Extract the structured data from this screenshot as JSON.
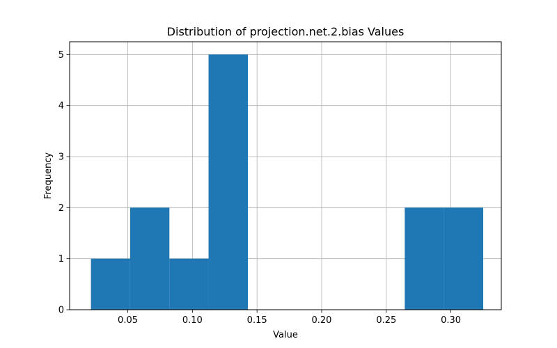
{
  "chart_data": {
    "type": "histogram",
    "title": "Distribution of projection.net.2.bias Values",
    "xlabel": "Value",
    "ylabel": "Frequency",
    "xlim": [
      0.005,
      0.339
    ],
    "ylim": [
      0,
      5.25
    ],
    "grid": true,
    "bar_color": "#1f77b4",
    "bins": [
      {
        "start": 0.0215,
        "end": 0.0518,
        "count": 1
      },
      {
        "start": 0.0518,
        "end": 0.0822,
        "count": 2
      },
      {
        "start": 0.0822,
        "end": 0.1125,
        "count": 1
      },
      {
        "start": 0.1125,
        "end": 0.1429,
        "count": 5
      },
      {
        "start": 0.1429,
        "end": 0.1732,
        "count": 0
      },
      {
        "start": 0.1732,
        "end": 0.2036,
        "count": 0
      },
      {
        "start": 0.2036,
        "end": 0.2339,
        "count": 0
      },
      {
        "start": 0.2339,
        "end": 0.2643,
        "count": 0
      },
      {
        "start": 0.2643,
        "end": 0.2946,
        "count": 2
      },
      {
        "start": 0.2946,
        "end": 0.325,
        "count": 2
      }
    ],
    "xticks": [
      {
        "value": 0.05,
        "label": "0.05"
      },
      {
        "value": 0.1,
        "label": "0.10"
      },
      {
        "value": 0.15,
        "label": "0.15"
      },
      {
        "value": 0.2,
        "label": "0.20"
      },
      {
        "value": 0.25,
        "label": "0.25"
      },
      {
        "value": 0.3,
        "label": "0.30"
      }
    ],
    "yticks": [
      {
        "value": 0,
        "label": "0"
      },
      {
        "value": 1,
        "label": "1"
      },
      {
        "value": 2,
        "label": "2"
      },
      {
        "value": 3,
        "label": "3"
      },
      {
        "value": 4,
        "label": "4"
      },
      {
        "value": 5,
        "label": "5"
      }
    ]
  }
}
